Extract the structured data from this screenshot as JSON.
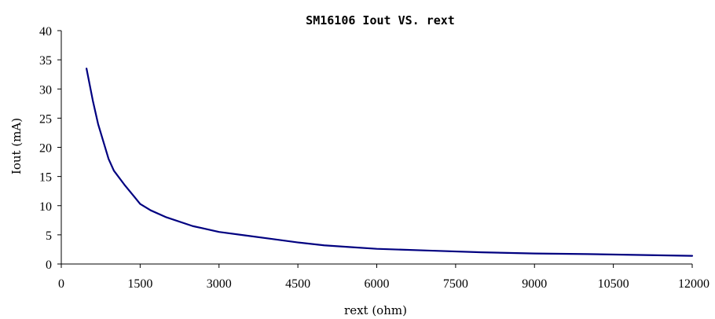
{
  "chart_data": {
    "type": "line",
    "title": "SM16106 Iout VS. rext",
    "xlabel": "rext (ohm)",
    "ylabel": "Iout (mA)",
    "xlim": [
      0,
      12000
    ],
    "ylim": [
      0,
      40
    ],
    "x_ticks": [
      0,
      1500,
      3000,
      4500,
      6000,
      7500,
      9000,
      10500,
      12000
    ],
    "y_ticks": [
      0,
      5,
      10,
      15,
      20,
      25,
      30,
      35,
      40
    ],
    "grid": false,
    "legend": "none",
    "line_color": "#000080",
    "series": [
      {
        "x": [
          480,
          600,
          700,
          800,
          900,
          1000,
          1200,
          1400,
          1500,
          1700,
          2000,
          2500,
          3000,
          3500,
          4000,
          4500,
          5000,
          5500,
          6000,
          7000,
          8000,
          9000,
          10000,
          11000,
          12000
        ],
        "values": [
          33.5,
          28.0,
          24.0,
          21.0,
          18.0,
          16.0,
          13.6,
          11.4,
          10.3,
          9.2,
          8.0,
          6.5,
          5.5,
          4.9,
          4.3,
          3.7,
          3.2,
          2.9,
          2.6,
          2.3,
          2.0,
          1.8,
          1.7,
          1.55,
          1.4
        ]
      }
    ]
  }
}
